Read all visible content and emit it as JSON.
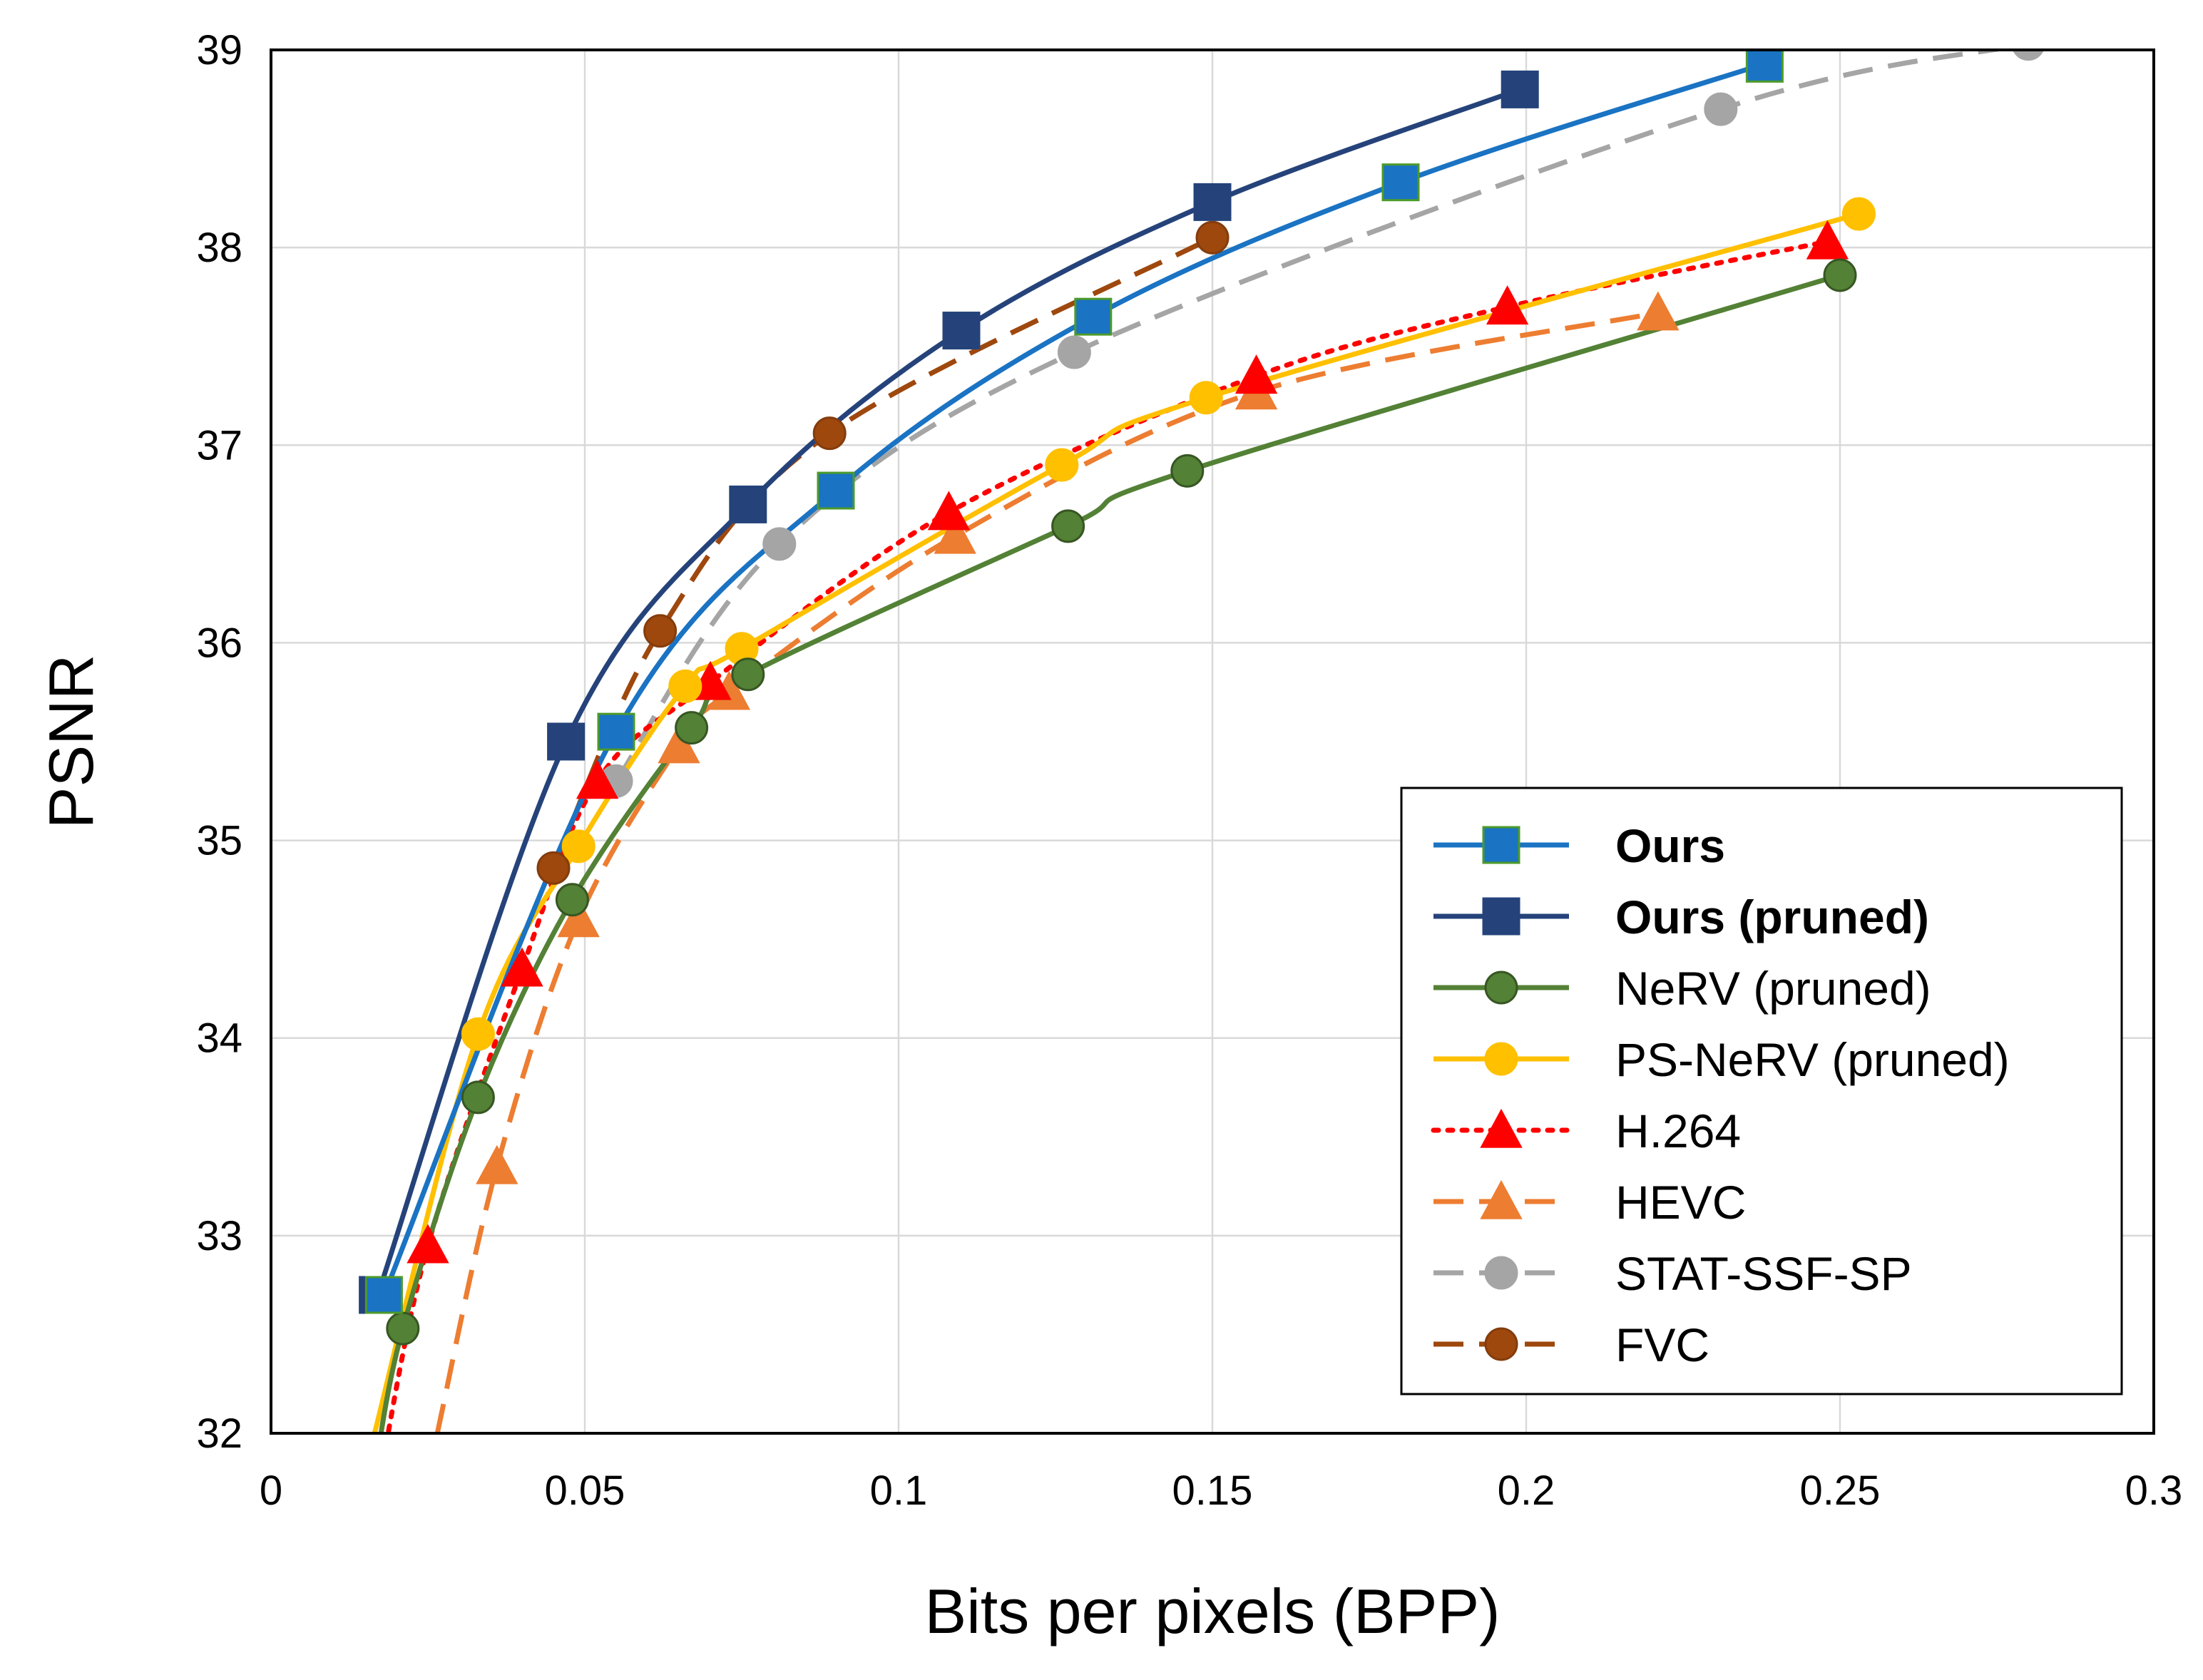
{
  "chart_data": {
    "type": "line",
    "title": "",
    "xlabel": "Bits per pixels (BPP)",
    "ylabel": "PSNR",
    "xlim": [
      0,
      0.3
    ],
    "ylim": [
      32,
      39
    ],
    "xticks": [
      0,
      0.05,
      0.1,
      0.15,
      0.2,
      0.25,
      0.3
    ],
    "xtick_labels": [
      "0",
      "0.05",
      "0.1",
      "0.15",
      "0.2",
      "0.25",
      "0.3"
    ],
    "yticks": [
      32,
      33,
      34,
      35,
      36,
      37,
      38,
      39
    ],
    "ytick_labels": [
      "32",
      "33",
      "34",
      "35",
      "36",
      "37",
      "38",
      "39"
    ],
    "grid": true,
    "legend_position": "bottom-right",
    "series": [
      {
        "name": "Ours",
        "bold": true,
        "color": "#1A73C3",
        "line_style": "solid",
        "marker": "square",
        "marker_edge": "#4C9A2A",
        "points": [
          [
            0.018,
            32.7
          ],
          [
            0.055,
            35.55
          ],
          [
            0.09,
            36.77
          ],
          [
            0.131,
            37.65
          ],
          [
            0.18,
            38.33
          ],
          [
            0.238,
            38.93
          ]
        ]
      },
      {
        "name": "Ours (pruned)",
        "bold": true,
        "color": "#25437A",
        "line_style": "solid",
        "marker": "square",
        "marker_edge": "#25437A",
        "points": [
          [
            0.017,
            32.7
          ],
          [
            0.047,
            35.5
          ],
          [
            0.076,
            36.7
          ],
          [
            0.11,
            37.58
          ],
          [
            0.15,
            38.23
          ],
          [
            0.199,
            38.8
          ]
        ]
      },
      {
        "name": "NeRV (pruned)",
        "bold": false,
        "color": "#538135",
        "line_style": "solid",
        "marker": "circle",
        "marker_edge": "#375623",
        "points": [
          [
            0.0165,
            31.8
          ],
          [
            0.021,
            32.53
          ],
          [
            0.033,
            33.7
          ],
          [
            0.048,
            34.7
          ],
          [
            0.067,
            35.57
          ],
          [
            0.076,
            35.84
          ],
          [
            0.127,
            36.59
          ],
          [
            0.146,
            36.87
          ],
          [
            0.25,
            37.86
          ]
        ]
      },
      {
        "name": "PS-NeRV (pruned)",
        "bold": false,
        "color": "#FFC000",
        "line_style": "solid",
        "marker": "circle",
        "marker_edge": "#FFC000",
        "points": [
          [
            0.0165,
            32.0
          ],
          [
            0.033,
            34.02
          ],
          [
            0.049,
            34.97
          ],
          [
            0.066,
            35.78
          ],
          [
            0.075,
            35.97
          ],
          [
            0.126,
            36.9
          ],
          [
            0.149,
            37.24
          ],
          [
            0.253,
            38.17
          ]
        ]
      },
      {
        "name": "H.264",
        "bold": false,
        "color": "#FF0000",
        "line_style": "dotted",
        "marker": "triangle",
        "marker_edge": "#FF0000",
        "points": [
          [
            0.0175,
            31.8
          ],
          [
            0.025,
            32.95
          ],
          [
            0.04,
            34.35
          ],
          [
            0.052,
            35.3
          ],
          [
            0.07,
            35.8
          ],
          [
            0.108,
            36.66
          ],
          [
            0.157,
            37.35
          ],
          [
            0.197,
            37.7
          ],
          [
            0.248,
            38.03
          ]
        ]
      },
      {
        "name": "HEVC",
        "bold": false,
        "color": "#ED7D31",
        "line_style": "dashed",
        "marker": "triangle",
        "marker_edge": "#ED7D31",
        "points": [
          [
            0.0265,
            32.0
          ],
          [
            0.036,
            33.35
          ],
          [
            0.049,
            34.6
          ],
          [
            0.065,
            35.48
          ],
          [
            0.073,
            35.75
          ],
          [
            0.109,
            36.54
          ],
          [
            0.157,
            37.27
          ],
          [
            0.221,
            37.67
          ]
        ]
      },
      {
        "name": "STAT-SSF-SP",
        "bold": false,
        "color": "#A5A5A5",
        "line_style": "dashed",
        "marker": "circle",
        "marker_edge": "#A5A5A5",
        "points": [
          [
            0.055,
            35.3
          ],
          [
            0.081,
            36.5
          ],
          [
            0.128,
            37.47
          ],
          [
            0.231,
            38.7
          ],
          [
            0.28,
            39.03
          ]
        ]
      },
      {
        "name": "FVC",
        "bold": false,
        "color": "#9E480E",
        "line_style": "dashed",
        "marker": "circle",
        "marker_edge": "#843C0C",
        "points": [
          [
            0.045,
            34.86
          ],
          [
            0.062,
            36.06
          ],
          [
            0.089,
            37.06
          ],
          [
            0.15,
            38.05
          ]
        ]
      }
    ]
  }
}
